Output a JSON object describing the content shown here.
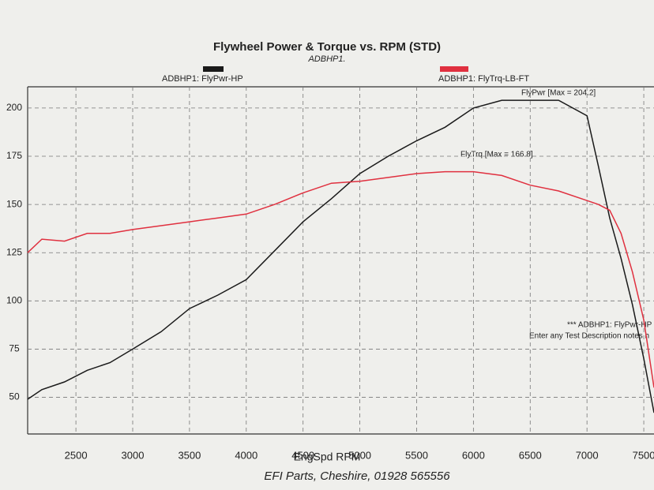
{
  "chart_data": {
    "type": "line",
    "title": "Flywheel Power & Torque vs. RPM (STD)",
    "subtitle": "ADBHP1.",
    "x_label": "EngSpd RPM",
    "footer": "EFI Parts, Cheshire, 01928 565556",
    "annotations": [
      "FlyPwr [Max = 204.2]",
      "FlyTrq [Max = 166.8]",
      "*** ADBHP1: FlyPwr-HP",
      "Enter any Test Description notes h"
    ],
    "x": [
      2075,
      2200,
      2400,
      2600,
      2800,
      3000,
      3250,
      3500,
      3750,
      4000,
      4250,
      4500,
      4750,
      5000,
      5250,
      5500,
      5750,
      6000,
      6250,
      6500,
      6750,
      7000,
      7100,
      7200,
      7300,
      7400,
      7500,
      7590
    ],
    "series": [
      {
        "name": "ADBHP1: FlyPwr-HP",
        "color": "#1a1a1a",
        "values": [
          49,
          54,
          58,
          64,
          68,
          75,
          84,
          96,
          103,
          111,
          126,
          141,
          153,
          166,
          175,
          183,
          190,
          200,
          204,
          204,
          204,
          196,
          170,
          143,
          122,
          98,
          70,
          42
        ]
      },
      {
        "name": "ADBHP1: FlyTrq-LB-FT",
        "color": "#e0303f",
        "values": [
          125,
          132,
          131,
          135,
          135,
          137,
          139,
          141,
          143,
          145,
          150,
          156,
          161,
          162,
          164,
          166,
          167,
          167,
          165,
          160,
          157,
          152,
          150,
          147,
          135,
          115,
          90,
          55
        ]
      }
    ],
    "xlim": [
      2075,
      7590
    ],
    "xticks": [
      2500,
      3000,
      3500,
      4000,
      4500,
      5000,
      5500,
      6000,
      6500,
      7000,
      7500
    ],
    "ylim": [
      31,
      211
    ],
    "yticks": [
      50,
      75,
      100,
      125,
      150,
      175,
      200
    ],
    "grid": true
  }
}
